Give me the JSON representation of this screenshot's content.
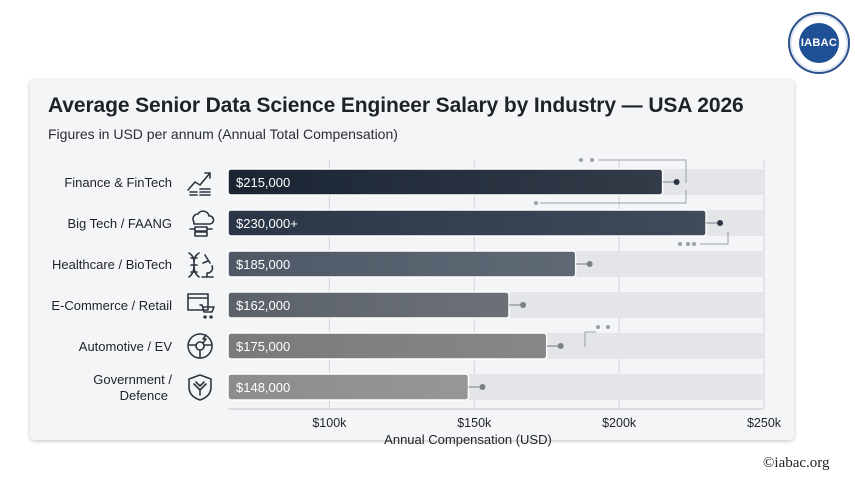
{
  "brand": {
    "logo_text": "IABAC",
    "copyright": "©iabac.org"
  },
  "chart_data": {
    "type": "bar",
    "orientation": "horizontal",
    "title": "Average Senior Data Science Engineer Salary by Industry — USA 2026",
    "subtitle": "Figures in USD per annum (Annual Total Compensation)",
    "xlabel": "Annual Compensation (USD)",
    "ylabel": "",
    "xlim": [
      65000,
      250000
    ],
    "ticks": [
      {
        "value": 100000,
        "label": "$100k"
      },
      {
        "value": 150000,
        "label": "$150k"
      },
      {
        "value": 200000,
        "label": "$200k"
      },
      {
        "value": 250000,
        "label": "$250k"
      }
    ],
    "categories": [
      "Finance & FinTech",
      "Big Tech / FAANG",
      "Healthcare / BioTech",
      "E-Commerce / Retail",
      "Automotive / EV",
      "Government / Defence"
    ],
    "values": [
      215000,
      230000,
      185000,
      162000,
      175000,
      148000
    ],
    "value_labels": [
      "$215,000",
      "$230,000+",
      "$185,000",
      "$162,000",
      "$175,000",
      "$148,000"
    ],
    "icons": [
      "rising-chart-coins-icon",
      "cloud-server-icon",
      "dna-microscope-icon",
      "shopping-cart-browser-icon",
      "steering-wheel-icon",
      "eagle-shield-icon"
    ],
    "colors": [
      "#1b2433",
      "#2a3546",
      "#4e5866",
      "#5b6168",
      "#7a7a7a",
      "#8c8c8c"
    ],
    "track_color": "#e3e5e8",
    "grid": true
  }
}
